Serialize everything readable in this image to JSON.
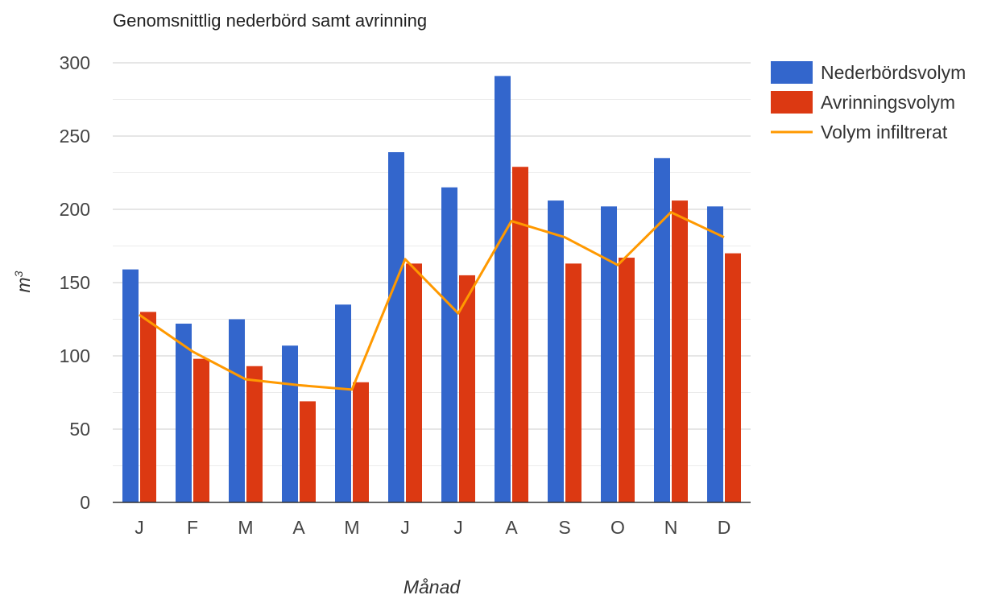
{
  "chart_data": {
    "type": "bar",
    "title": "Genomsnittlig nederbörd samt avrinning",
    "xlabel": "Månad",
    "ylabel": "m",
    "ylabel_superscript": "3",
    "categories": [
      "J",
      "F",
      "M",
      "A",
      "M",
      "J",
      "J",
      "A",
      "S",
      "O",
      "N",
      "D"
    ],
    "ylim": [
      0,
      300
    ],
    "yticks": [
      0,
      50,
      100,
      150,
      200,
      250,
      300
    ],
    "grid": true,
    "legend_position": "right",
    "series": [
      {
        "name": "Nederbördsvolym",
        "type": "bar",
        "color": "#3366cc",
        "values": [
          159,
          122,
          125,
          107,
          135,
          239,
          215,
          291,
          206,
          202,
          235,
          202
        ]
      },
      {
        "name": "Avrinningsvolym",
        "type": "bar",
        "color": "#dc3912",
        "values": [
          130,
          98,
          93,
          69,
          82,
          163,
          155,
          229,
          163,
          167,
          206,
          170
        ]
      },
      {
        "name": "Volym infiltrerat",
        "type": "line",
        "color": "#ff9900",
        "values": [
          128,
          103,
          84,
          80,
          77,
          166,
          129,
          192,
          181,
          162,
          198,
          181
        ]
      }
    ]
  }
}
